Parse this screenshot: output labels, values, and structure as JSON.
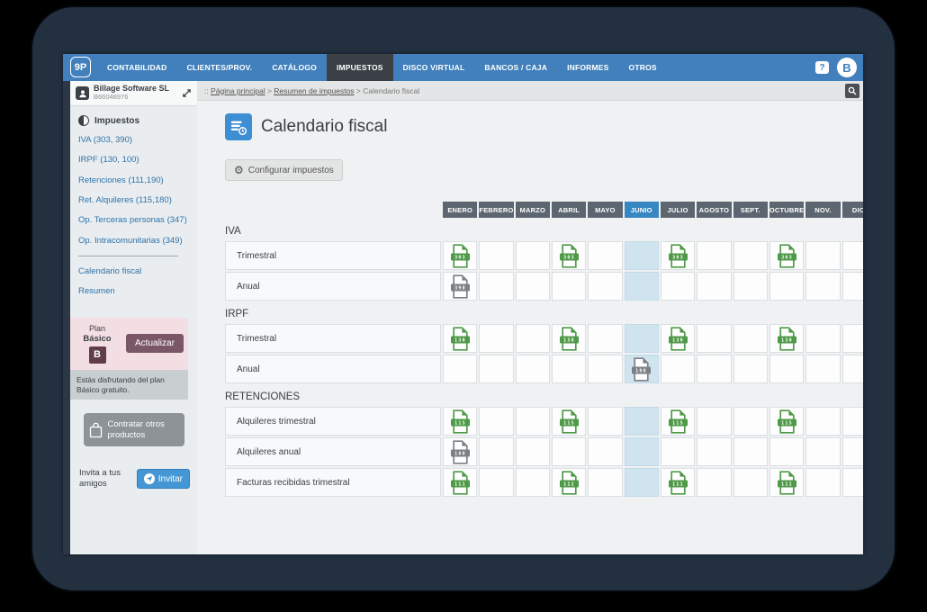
{
  "nav": {
    "logo": "9P",
    "items": [
      "CONTABILIDAD",
      "CLIENTES/PROV.",
      "CATÁLOGO",
      "IMPUESTOS",
      "DISCO VIRTUAL",
      "BANCOS / CAJA",
      "INFORMES",
      "OTROS"
    ],
    "active": "IMPUESTOS",
    "help_label": "?",
    "avatar_label": "B"
  },
  "company": {
    "name": "Billage Software SL",
    "id": "B66048976"
  },
  "breadcrumb": {
    "prefix": "::",
    "links": [
      "Página principal",
      "Resumen de impuestos"
    ],
    "current": "Calendario fiscal"
  },
  "sidebar": {
    "section_title": "Impuestos",
    "links": [
      "IVA (303, 390)",
      "IRPF (130, 100)",
      "Retenciones (111,190)",
      "Ret. Alquileres (115,180)",
      "Op. Terceras personas (347)",
      "Op. Intracomunitarias (349)"
    ],
    "links_secondary": [
      "Calendario fiscal",
      "Resumen"
    ],
    "plan": {
      "line1": "Plan",
      "line2": "Básico",
      "badge": "B",
      "button_label": "Actualizar",
      "note": "Estás disfrutando del plan Básico gratuito."
    },
    "contract_button_label": "Contratar otros productos",
    "invite": {
      "text": "Invita a tus amigos",
      "button_label": "Invitar"
    }
  },
  "main": {
    "title": "Calendario fiscal",
    "configure_button_label": "Configurar impuestos",
    "months": [
      "ENERO",
      "FEBRERO",
      "MARZO",
      "ABRIL",
      "MAYO",
      "JUNIO",
      "JULIO",
      "AGOSTO",
      "SEPT.",
      "OCTUBRE",
      "NOV.",
      "DIC."
    ],
    "current_month_index": 5,
    "sections": [
      {
        "name": "IVA",
        "rows": [
          {
            "label": "Trimestral",
            "model": "303",
            "color": "green",
            "months": [
              0,
              3,
              6,
              9
            ]
          },
          {
            "label": "Anual",
            "model": "390",
            "color": "gray",
            "months": [
              0
            ]
          }
        ]
      },
      {
        "name": "IRPF",
        "rows": [
          {
            "label": "Trimestral",
            "model": "130",
            "color": "green",
            "months": [
              0,
              3,
              6,
              9
            ]
          },
          {
            "label": "Anual",
            "model": "100",
            "color": "gray",
            "months": [
              5
            ]
          }
        ]
      },
      {
        "name": "RETENCIONES",
        "rows": [
          {
            "label": "Alquileres trimestral",
            "model": "115",
            "color": "green",
            "months": [
              0,
              3,
              6,
              9
            ]
          },
          {
            "label": "Alquileres anual",
            "model": "180",
            "color": "gray",
            "months": [
              0
            ]
          },
          {
            "label": "Facturas recibidas trimestral",
            "model": "111",
            "color": "green",
            "months": [
              0,
              3,
              6,
              9
            ]
          }
        ]
      }
    ]
  },
  "colors": {
    "nav_blue": "#4180bc",
    "active_dark": "#3a4046",
    "link_blue": "#2e72a8",
    "plan_pink": "#f3dee4",
    "plan_maroon": "#5f3d49",
    "plan_button": "#7a5766",
    "note_gray": "#c9ced1",
    "contract_gray": "#8e9397",
    "invite_blue": "#4596d4",
    "accent_blue": "#3d8ed2",
    "month_header_bg": "#5d6670",
    "current_month_bg": "#3787c3",
    "month_highlight": "#cfe4ee",
    "icon_green": "#4f9a48",
    "icon_gray": "#7b8084"
  }
}
